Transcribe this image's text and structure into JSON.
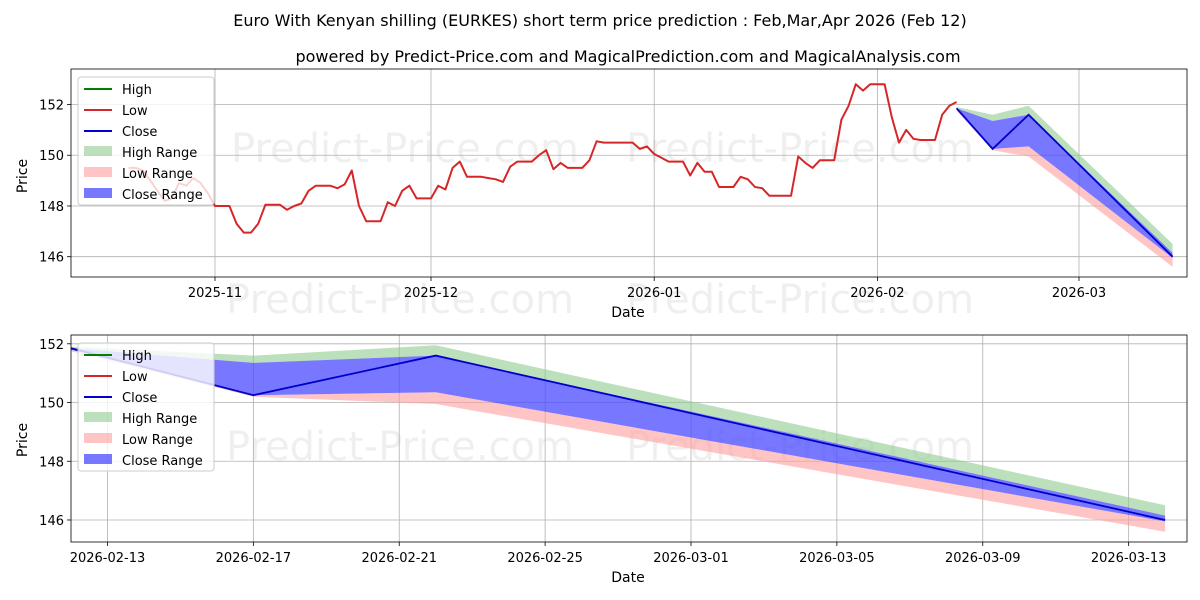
{
  "title": "Euro With Kenyan shilling (EURKES) short term price prediction : Feb,Mar,Apr 2026 (Feb 12)",
  "subtitle": "powered by Predict-Price.com and MagicalPrediction.com and MagicalAnalysis.com",
  "watermark": "Predict-Price.com",
  "colors": {
    "high": "#008000",
    "low": "#d62728",
    "close": "#0000cc",
    "high_range": "#8fc98f",
    "low_range": "#ff9f9f",
    "close_range": "#4a4aff"
  },
  "legend": {
    "high": "High",
    "low": "Low",
    "close": "Close",
    "high_range": "High Range",
    "low_range": "Low Range",
    "close_range": "Close Range"
  },
  "chart_data": [
    {
      "type": "line",
      "xlabel": "Date",
      "ylabel": "Price",
      "xlim": [
        "2025-10-12",
        "2026-03-16"
      ],
      "ylim": [
        145.2,
        153.4
      ],
      "yticks": [
        146,
        148,
        150,
        152
      ],
      "xticks": [
        {
          "date": "2025-11-01",
          "label": "2025-11"
        },
        {
          "date": "2025-12-01",
          "label": "2025-12"
        },
        {
          "date": "2026-01-01",
          "label": "2026-01"
        },
        {
          "date": "2026-02-01",
          "label": "2026-02"
        },
        {
          "date": "2026-03-01",
          "label": "2026-03"
        }
      ],
      "legend_position": "upper-left",
      "history": {
        "name": "Low",
        "points": [
          [
            "2025-10-20",
            149.5
          ],
          [
            "2025-10-21",
            149.5
          ],
          [
            "2025-10-22",
            149.4
          ],
          [
            "2025-10-23",
            149.0
          ],
          [
            "2025-10-24",
            148.6
          ],
          [
            "2025-10-25",
            148.2
          ],
          [
            "2025-10-26",
            148.3
          ],
          [
            "2025-10-27",
            148.9
          ],
          [
            "2025-10-28",
            148.8
          ],
          [
            "2025-10-29",
            149.1
          ],
          [
            "2025-10-30",
            148.9
          ],
          [
            "2025-10-31",
            148.5
          ],
          [
            "2025-11-01",
            148.0
          ],
          [
            "2025-11-02",
            148.0
          ],
          [
            "2025-11-03",
            148.0
          ],
          [
            "2025-11-04",
            147.3
          ],
          [
            "2025-11-05",
            146.95
          ],
          [
            "2025-11-06",
            146.95
          ],
          [
            "2025-11-07",
            147.3
          ],
          [
            "2025-11-08",
            148.05
          ],
          [
            "2025-11-09",
            148.05
          ],
          [
            "2025-11-10",
            148.05
          ],
          [
            "2025-11-11",
            147.85
          ],
          [
            "2025-11-12",
            148.0
          ],
          [
            "2025-11-13",
            148.1
          ],
          [
            "2025-11-14",
            148.6
          ],
          [
            "2025-11-15",
            148.8
          ],
          [
            "2025-11-16",
            148.8
          ],
          [
            "2025-11-17",
            148.8
          ],
          [
            "2025-11-18",
            148.7
          ],
          [
            "2025-11-19",
            148.85
          ],
          [
            "2025-11-20",
            149.4
          ],
          [
            "2025-11-21",
            148.0
          ],
          [
            "2025-11-22",
            147.4
          ],
          [
            "2025-11-23",
            147.4
          ],
          [
            "2025-11-24",
            147.4
          ],
          [
            "2025-11-25",
            148.15
          ],
          [
            "2025-11-26",
            148.0
          ],
          [
            "2025-11-27",
            148.6
          ],
          [
            "2025-11-28",
            148.8
          ],
          [
            "2025-11-29",
            148.3
          ],
          [
            "2025-11-30",
            148.3
          ],
          [
            "2025-12-01",
            148.3
          ],
          [
            "2025-12-02",
            148.8
          ],
          [
            "2025-12-03",
            148.65
          ],
          [
            "2025-12-04",
            149.5
          ],
          [
            "2025-12-05",
            149.75
          ],
          [
            "2025-12-06",
            149.15
          ],
          [
            "2025-12-07",
            149.15
          ],
          [
            "2025-12-08",
            149.15
          ],
          [
            "2025-12-09",
            149.1
          ],
          [
            "2025-12-10",
            149.05
          ],
          [
            "2025-12-11",
            148.95
          ],
          [
            "2025-12-12",
            149.55
          ],
          [
            "2025-12-13",
            149.75
          ],
          [
            "2025-12-14",
            149.75
          ],
          [
            "2025-12-15",
            149.75
          ],
          [
            "2025-12-16",
            150.0
          ],
          [
            "2025-12-17",
            150.2
          ],
          [
            "2025-12-18",
            149.45
          ],
          [
            "2025-12-19",
            149.7
          ],
          [
            "2025-12-20",
            149.5
          ],
          [
            "2025-12-21",
            149.5
          ],
          [
            "2025-12-22",
            149.5
          ],
          [
            "2025-12-23",
            149.8
          ],
          [
            "2025-12-24",
            150.55
          ],
          [
            "2025-12-25",
            150.5
          ],
          [
            "2025-12-26",
            150.5
          ],
          [
            "2025-12-27",
            150.5
          ],
          [
            "2025-12-28",
            150.5
          ],
          [
            "2025-12-29",
            150.5
          ],
          [
            "2025-12-30",
            150.25
          ],
          [
            "2025-12-31",
            150.35
          ],
          [
            "2026-01-01",
            150.05
          ],
          [
            "2026-01-02",
            149.9
          ],
          [
            "2026-01-03",
            149.75
          ],
          [
            "2026-01-04",
            149.75
          ],
          [
            "2026-01-05",
            149.75
          ],
          [
            "2026-01-06",
            149.2
          ],
          [
            "2026-01-07",
            149.7
          ],
          [
            "2026-01-08",
            149.35
          ],
          [
            "2026-01-09",
            149.35
          ],
          [
            "2026-01-10",
            148.75
          ],
          [
            "2026-01-11",
            148.75
          ],
          [
            "2026-01-12",
            148.75
          ],
          [
            "2026-01-13",
            149.15
          ],
          [
            "2026-01-14",
            149.05
          ],
          [
            "2026-01-15",
            148.75
          ],
          [
            "2026-01-16",
            148.7
          ],
          [
            "2026-01-17",
            148.4
          ],
          [
            "2026-01-18",
            148.4
          ],
          [
            "2026-01-19",
            148.4
          ],
          [
            "2026-01-20",
            148.4
          ],
          [
            "2026-01-21",
            149.95
          ],
          [
            "2026-01-22",
            149.7
          ],
          [
            "2026-01-23",
            149.5
          ],
          [
            "2026-01-24",
            149.8
          ],
          [
            "2026-01-25",
            149.8
          ],
          [
            "2026-01-26",
            149.8
          ],
          [
            "2026-01-27",
            151.4
          ],
          [
            "2026-01-28",
            151.95
          ],
          [
            "2026-01-29",
            152.8
          ],
          [
            "2026-01-30",
            152.55
          ],
          [
            "2026-01-31",
            152.8
          ],
          [
            "2026-02-01",
            152.8
          ],
          [
            "2026-02-02",
            152.8
          ],
          [
            "2026-02-03",
            151.5
          ],
          [
            "2026-02-04",
            150.5
          ],
          [
            "2026-02-05",
            151.0
          ],
          [
            "2026-02-06",
            150.65
          ],
          [
            "2026-02-07",
            150.6
          ],
          [
            "2026-02-08",
            150.6
          ],
          [
            "2026-02-09",
            150.6
          ],
          [
            "2026-02-10",
            151.6
          ],
          [
            "2026-02-11",
            151.95
          ],
          [
            "2026-02-12",
            152.1
          ]
        ]
      }
    },
    {
      "type": "line",
      "xlabel": "Date",
      "ylabel": "Price",
      "xlim": [
        "2026-02-12",
        "2026-03-14.6"
      ],
      "ylim": [
        145.25,
        152.3
      ],
      "yticks": [
        146,
        148,
        150,
        152
      ],
      "xticks": [
        {
          "date": "2026-02-13",
          "label": "2026-02-13"
        },
        {
          "date": "2026-02-17",
          "label": "2026-02-17"
        },
        {
          "date": "2026-02-21",
          "label": "2026-02-21"
        },
        {
          "date": "2026-02-25",
          "label": "2026-02-25"
        },
        {
          "date": "2026-03-01",
          "label": "2026-03-01"
        },
        {
          "date": "2026-03-05",
          "label": "2026-03-05"
        },
        {
          "date": "2026-03-09",
          "label": "2026-03-09"
        },
        {
          "date": "2026-03-13",
          "label": "2026-03-13"
        }
      ],
      "legend_position": "upper-left"
    }
  ],
  "forecast": {
    "dates": [
      "2026-02-12",
      "2026-02-17",
      "2026-02-22",
      "2026-03-14"
    ],
    "high_upper": [
      151.9,
      151.6,
      151.95,
      146.5
    ],
    "high_lower": [
      151.85,
      151.35,
      151.6,
      146.15
    ],
    "close_upper": [
      151.85,
      151.35,
      151.6,
      146.15
    ],
    "close": [
      151.85,
      150.25,
      151.6,
      146.0
    ],
    "close_lower": [
      151.8,
      150.25,
      150.35,
      145.95
    ],
    "low_upper": [
      151.8,
      150.25,
      150.35,
      145.95
    ],
    "low_lower": [
      151.75,
      150.2,
      149.95,
      145.6
    ]
  }
}
